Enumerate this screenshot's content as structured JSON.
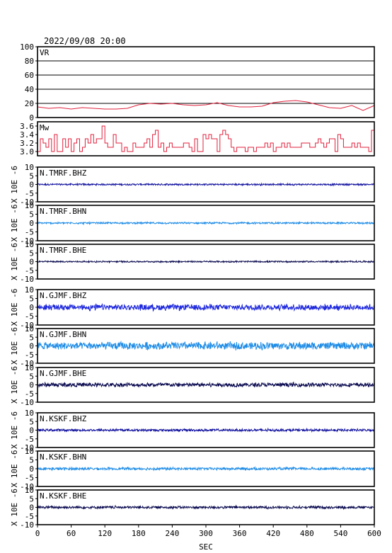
{
  "chart_data": {
    "type": "line",
    "title": "2022/09/08 20:00",
    "xlabel": "SEC",
    "xlim": [
      0,
      600
    ],
    "xticks": [
      0,
      60,
      120,
      180,
      240,
      300,
      360,
      420,
      480,
      540,
      600
    ],
    "panels": [
      {
        "label": "VR",
        "ylim": [
          0,
          100
        ],
        "yticks": [
          0,
          20,
          40,
          60,
          80,
          100
        ],
        "grid": true,
        "color": "#e0203c",
        "series": [
          {
            "x": [
              0,
              20,
              40,
              60,
              80,
              100,
              120,
              140,
              160,
              180,
              200,
              220,
              240,
              260,
              280,
              300,
              320,
              340,
              360,
              380,
              400,
              420,
              440,
              460,
              480,
              500,
              520,
              540,
              560,
              580,
              600
            ],
            "y": [
              15,
              13,
              14,
              12,
              14,
              13,
              12,
              12,
              13,
              18,
              20,
              19,
              20,
              18,
              17,
              18,
              21,
              17,
              15,
              15,
              16,
              21,
              23,
              24,
              22,
              18,
              14,
              13,
              17,
              10,
              17
            ]
          }
        ]
      },
      {
        "label": "Mw",
        "ylim": [
          2.9,
          3.7
        ],
        "yticks": [
          3.0,
          3.2,
          3.4,
          3.6
        ],
        "grid": false,
        "color": "#e0203c",
        "series": [
          {
            "x": [
              0,
              5,
              10,
              15,
              20,
              25,
              30,
              35,
              40,
              45,
              50,
              55,
              60,
              65,
              70,
              75,
              80,
              85,
              90,
              95,
              100,
              105,
              110,
              115,
              120,
              125,
              130,
              135,
              140,
              145,
              150,
              155,
              160,
              165,
              170,
              175,
              180,
              185,
              190,
              195,
              200,
              205,
              210,
              215,
              220,
              225,
              230,
              235,
              240,
              245,
              250,
              255,
              260,
              265,
              270,
              275,
              280,
              285,
              290,
              295,
              300,
              305,
              310,
              315,
              320,
              325,
              330,
              335,
              340,
              345,
              350,
              355,
              360,
              365,
              370,
              375,
              380,
              385,
              390,
              395,
              400,
              405,
              410,
              415,
              420,
              425,
              430,
              435,
              440,
              445,
              450,
              455,
              460,
              465,
              470,
              475,
              480,
              485,
              490,
              495,
              500,
              505,
              510,
              515,
              520,
              525,
              530,
              535,
              540,
              545,
              550,
              555,
              560,
              565,
              570,
              575,
              580,
              585,
              590,
              595,
              600
            ],
            "y": [
              3.0,
              3.3,
              3.2,
              3.1,
              3.3,
              3.0,
              3.4,
              3.0,
              3.0,
              3.3,
              3.1,
              3.3,
              3.0,
              3.2,
              3.3,
              3.0,
              3.1,
              3.3,
              3.2,
              3.4,
              3.2,
              3.3,
              3.3,
              3.6,
              3.2,
              3.1,
              3.1,
              3.4,
              3.2,
              3.2,
              3.0,
              3.1,
              3.0,
              3.0,
              3.2,
              3.1,
              3.1,
              3.1,
              3.2,
              3.3,
              3.1,
              3.4,
              3.5,
              3.1,
              3.2,
              3.0,
              3.1,
              3.2,
              3.1,
              3.1,
              3.1,
              3.1,
              3.2,
              3.2,
              3.1,
              3.0,
              3.3,
              3.0,
              3.0,
              3.4,
              3.3,
              3.4,
              3.3,
              3.3,
              3.0,
              3.4,
              3.5,
              3.4,
              3.3,
              3.1,
              3.0,
              3.1,
              3.1,
              3.1,
              3.0,
              3.1,
              3.1,
              3.0,
              3.1,
              3.1,
              3.1,
              3.2,
              3.1,
              3.2,
              3.0,
              3.1,
              3.1,
              3.2,
              3.1,
              3.2,
              3.1,
              3.1,
              3.1,
              3.1,
              3.2,
              3.2,
              3.2,
              3.1,
              3.1,
              3.2,
              3.3,
              3.2,
              3.1,
              3.2,
              3.3,
              3.3,
              3.0,
              3.4,
              3.3,
              3.1,
              3.1,
              3.1,
              3.2,
              3.1,
              3.2,
              3.1,
              3.1,
              3.1,
              3.0,
              3.5,
              3.7
            ]
          }
        ]
      },
      {
        "label": "N.TMRF.BHZ",
        "ylabel": "X 10E -6",
        "ylim": [
          -10,
          10
        ],
        "yticks": [
          -10,
          -5,
          0,
          5,
          10
        ],
        "color": "#1414a0",
        "amplitude": 0.4
      },
      {
        "label": "N.TMRF.BHN",
        "ylabel": "X 10E -6",
        "ylim": [
          -10,
          10
        ],
        "yticks": [
          -10,
          -5,
          0,
          5,
          10
        ],
        "color": "#1e8ce6",
        "amplitude": 0.4
      },
      {
        "label": "N.TMRF.BHE",
        "ylabel": "X 10E -6",
        "ylim": [
          -10,
          10
        ],
        "yticks": [
          -10,
          -5,
          0,
          5,
          10
        ],
        "color": "#0a0a50",
        "amplitude": 0.35
      },
      {
        "label": "N.GJMF.BHZ",
        "ylabel": "X 10E -6",
        "ylim": [
          -10,
          10
        ],
        "yticks": [
          -10,
          -5,
          0,
          5,
          10
        ],
        "color": "#1e28dc",
        "amplitude": 1.4
      },
      {
        "label": "N.GJMF.BHN",
        "ylabel": "X 10E -6",
        "ylim": [
          -10,
          10
        ],
        "yticks": [
          -10,
          -5,
          0,
          5,
          10
        ],
        "color": "#1e8ce6",
        "amplitude": 1.8
      },
      {
        "label": "N.GJMF.BHE",
        "ylabel": "X 10E -6",
        "ylim": [
          -10,
          10
        ],
        "yticks": [
          -10,
          -5,
          0,
          5,
          10
        ],
        "color": "#0a0a50",
        "amplitude": 1.0
      },
      {
        "label": "N.KSKF.BHZ",
        "ylabel": "X 10E -6",
        "ylim": [
          -10,
          10
        ],
        "yticks": [
          -10,
          -5,
          0,
          5,
          10
        ],
        "color": "#1414a0",
        "amplitude": 0.6
      },
      {
        "label": "N.KSKF.BHN",
        "ylabel": "X 10E -6",
        "ylim": [
          -10,
          10
        ],
        "yticks": [
          -10,
          -5,
          0,
          5,
          10
        ],
        "color": "#1e8ce6",
        "amplitude": 0.6
      },
      {
        "label": "N.KSKF.BHE",
        "ylabel": "X 10E -6",
        "ylim": [
          -10,
          10
        ],
        "yticks": [
          -10,
          -5,
          0,
          5,
          10
        ],
        "color": "#0a0a50",
        "amplitude": 0.6
      }
    ]
  }
}
